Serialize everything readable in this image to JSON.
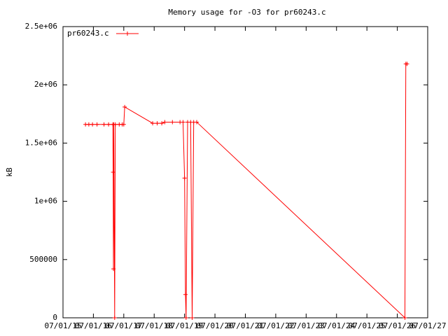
{
  "chart_data": {
    "type": "line",
    "title": "Memory usage for -O3 for pr60243.c",
    "y_label": "kB",
    "xlim": [
      0,
      12
    ],
    "xticks": [
      {
        "value": 0,
        "label": "07/01/15"
      },
      {
        "value": 1,
        "label": "07/01/16"
      },
      {
        "value": 2,
        "label": "07/01/17"
      },
      {
        "value": 3,
        "label": "07/01/18"
      },
      {
        "value": 4,
        "label": "07/01/19"
      },
      {
        "value": 5,
        "label": "07/01/20"
      },
      {
        "value": 6,
        "label": "07/01/21"
      },
      {
        "value": 7,
        "label": "07/01/22"
      },
      {
        "value": 8,
        "label": "07/01/23"
      },
      {
        "value": 9,
        "label": "07/01/24"
      },
      {
        "value": 10,
        "label": "07/01/25"
      },
      {
        "value": 11,
        "label": "07/01/26"
      },
      {
        "value": 12,
        "label": "07/01/27"
      }
    ],
    "ylim": [
      0,
      2500000
    ],
    "yticks": [
      0,
      500000,
      {
        "value": 1000000,
        "label": "1e+06"
      },
      {
        "value": 1500000,
        "label": "1.5e+06"
      },
      {
        "value": 2000000,
        "label": "2e+06"
      },
      {
        "value": 2500000,
        "label": "2.5e+06"
      }
    ],
    "legend": "top-left",
    "series": [
      {
        "name": "pr60243.c",
        "color": "#ff0000",
        "x": [
          0.74,
          0.85,
          0.97,
          1.12,
          1.35,
          1.5,
          1.64,
          1.65,
          1.66,
          1.67,
          1.7,
          1.72,
          1.85,
          1.95,
          2.0,
          2.03,
          2.95,
          3.1,
          3.25,
          3.35,
          3.6,
          3.85,
          3.95,
          4.0,
          4.03,
          4.05,
          4.1,
          4.2,
          4.25,
          4.3,
          4.4,
          11.25,
          11.28,
          11.32
        ],
        "values": [
          1660000,
          1660000,
          1660000,
          1660000,
          1660000,
          1660000,
          1660000,
          1250000,
          420000,
          1660000,
          0,
          1660000,
          1660000,
          1660000,
          1660000,
          1810000,
          1670000,
          1670000,
          1670000,
          1680000,
          1680000,
          1680000,
          1680000,
          1200000,
          200000,
          0,
          1680000,
          1680000,
          0,
          1680000,
          1680000,
          0,
          2180000,
          2180000
        ]
      }
    ]
  }
}
